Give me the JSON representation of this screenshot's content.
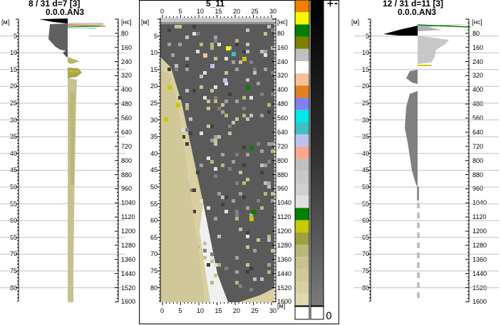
{
  "left_panel": {
    "title_line1": "8 / 31  d=7  [3]",
    "title_line2": "0.0.0.AN3",
    "depth_unit": "[м]",
    "time_unit": "[нс]",
    "depth_ticks": [
      "5",
      "10",
      "15",
      "20",
      "25",
      "30",
      "35",
      "40",
      "45",
      "50",
      "55",
      "60",
      "65",
      "70",
      "75",
      "80"
    ],
    "time_ticks": [
      "80",
      "160",
      "240",
      "320",
      "400",
      "480",
      "560",
      "640",
      "720",
      "800",
      "880",
      "960",
      "1040",
      "1120",
      "1200",
      "1280",
      "1360",
      "1440",
      "1520",
      "1600"
    ]
  },
  "center_panel": {
    "title": "5_11",
    "x_ticks": [
      "0",
      "5",
      "10",
      "15",
      "20",
      "25",
      "30"
    ],
    "depth_unit": "[м]",
    "time_unit": "[нс]",
    "depth_ticks": [
      "5",
      "10",
      "15",
      "20",
      "25",
      "30",
      "35",
      "40",
      "45",
      "50",
      "55",
      "60",
      "65",
      "70",
      "75",
      "80"
    ],
    "time_ticks": [
      "80",
      "160",
      "240",
      "320",
      "400",
      "480",
      "560",
      "640",
      "720",
      "800",
      "880",
      "960",
      "1040",
      "1120",
      "1200",
      "1280",
      "1360",
      "1440",
      "1520",
      "1600"
    ]
  },
  "palette": {
    "sign_label": "+-",
    "zero_label": "0",
    "colors": [
      "#f08000",
      "#f8f800",
      "#008000",
      "#808000",
      "#c0c0c0",
      "#ffffff",
      "#f8c098",
      "#e08020",
      "#8080f0",
      "#00e8e8",
      "#40c0c0",
      "#c0c0f0",
      "#f8a890",
      "#c0c0c0",
      "#c8c8c8",
      "#d0d0d0",
      "#e0e0e0",
      "#008000",
      "#c8c800",
      "#a0a040",
      "#b8b878",
      "#c8c090",
      "#d0c898",
      "#d8d0a0",
      "#e0d8b0"
    ]
  },
  "right_panel": {
    "title_line1": "12 / 31  d=11  [3]",
    "title_line2": "0.0.0.AN3",
    "depth_unit": "[м]",
    "time_unit": "[нс]",
    "depth_ticks": [
      "5",
      "10",
      "15",
      "20",
      "25",
      "30",
      "35",
      "40",
      "45",
      "50",
      "55",
      "60",
      "65",
      "70",
      "75",
      "80"
    ],
    "time_ticks": [
      "80",
      "160",
      "240",
      "320",
      "400",
      "480",
      "560",
      "640",
      "720",
      "800",
      "880",
      "960",
      "1040",
      "1120",
      "1200",
      "1280",
      "1360",
      "1440",
      "1520",
      "1600"
    ]
  }
}
